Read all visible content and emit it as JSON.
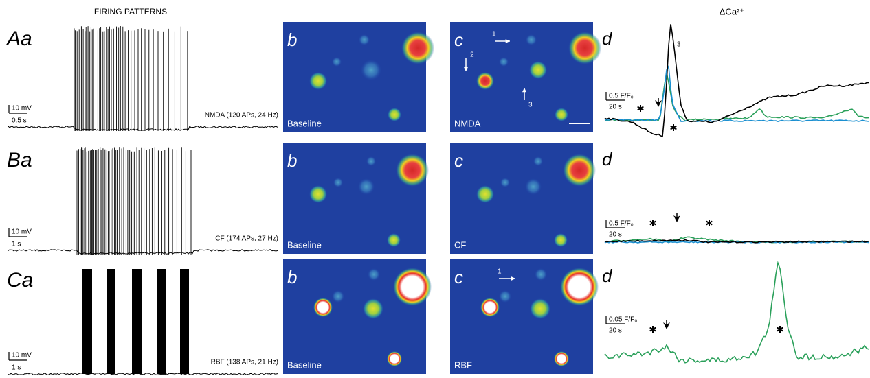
{
  "header": {
    "left_title": "FIRING PATTERNS",
    "right_title": "ΔCa²⁺"
  },
  "rows": [
    {
      "label": "Aa",
      "firing": {
        "voltage_scale": "10 mV",
        "time_scale": "0.5 s",
        "annotation": "NMDA (120 APs, 24 Hz)"
      },
      "baseline_image": {
        "panel": "b",
        "caption": "Baseline"
      },
      "response_image": {
        "panel": "c",
        "caption": "NMDA",
        "cell_markers": [
          "1",
          "2",
          "3"
        ]
      },
      "calcium": {
        "panel": "d",
        "amplitude_scale": "0.5 F/F₀",
        "time_scale": "20 s",
        "trace_label": "3"
      }
    },
    {
      "label": "Ba",
      "firing": {
        "voltage_scale": "10 mV",
        "time_scale": "1 s",
        "annotation": "CF (174 APs, 27 Hz)"
      },
      "baseline_image": {
        "panel": "b",
        "caption": "Baseline"
      },
      "response_image": {
        "panel": "c",
        "caption": "CF"
      },
      "calcium": {
        "panel": "d",
        "amplitude_scale": "0.5 F/F₀",
        "time_scale": "20 s"
      }
    },
    {
      "label": "Ca",
      "firing": {
        "voltage_scale": "10 mV",
        "time_scale": "1 s",
        "annotation": "RBF (138 APs, 21 Hz)"
      },
      "baseline_image": {
        "panel": "b",
        "caption": "Baseline"
      },
      "response_image": {
        "panel": "c",
        "caption": "RBF",
        "cell_markers": [
          "1"
        ]
      },
      "calcium": {
        "panel": "d",
        "amplitude_scale": "0.05 F/F₀",
        "time_scale": "20 s"
      }
    }
  ]
}
